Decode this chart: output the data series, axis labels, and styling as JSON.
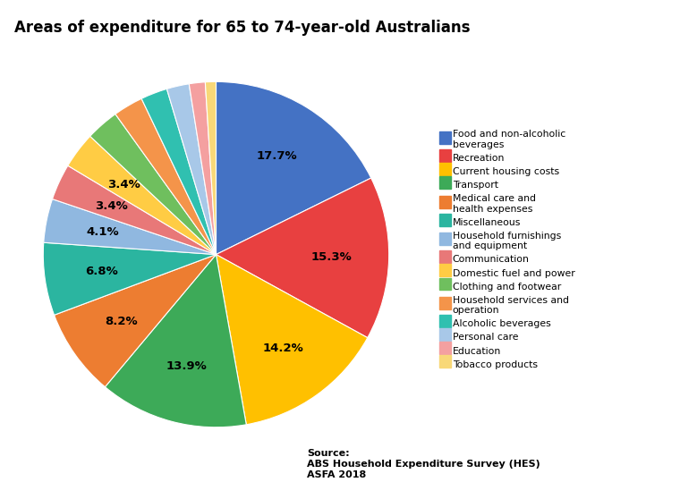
{
  "title": "Areas of expenditure for 65 to 74-year-old Australians",
  "source_text": "Source:\nABS Household Expenditure Survey (HES)\nASFA 2018",
  "values": [
    17.7,
    15.3,
    14.2,
    13.9,
    8.2,
    6.8,
    4.1,
    3.4,
    3.4,
    3.1,
    2.8,
    2.5,
    2.1,
    1.5,
    1.0
  ],
  "colors": [
    "#4472C4",
    "#E84040",
    "#FFC000",
    "#3DAA58",
    "#ED7D31",
    "#2BB5A0",
    "#90B8E0",
    "#E87878",
    "#FFCC44",
    "#6FBF5E",
    "#F4944A",
    "#30C0B0",
    "#A8C8E8",
    "#F4A0A0",
    "#F8D878"
  ],
  "pct_labels": [
    "17.7%",
    "15.3%",
    "14.2%",
    "13.9%",
    "8.2%",
    "6.8%",
    "4.1%",
    "3.4%",
    "3.4%",
    "",
    "",
    "",
    "",
    "",
    ""
  ],
  "legend_labels": [
    "Food and non-alcoholic\nbeverages",
    "Recreation",
    "Current housing costs",
    "Transport",
    "Medical care and\nhealth expenses",
    "Miscellaneous",
    "Household furnishings\nand equipment",
    "Communication",
    "Domestic fuel and power",
    "Clothing and footwear",
    "Household services and\noperation",
    "Alcoholic beverages",
    "Personal care",
    "Education",
    "Tobacco products"
  ]
}
